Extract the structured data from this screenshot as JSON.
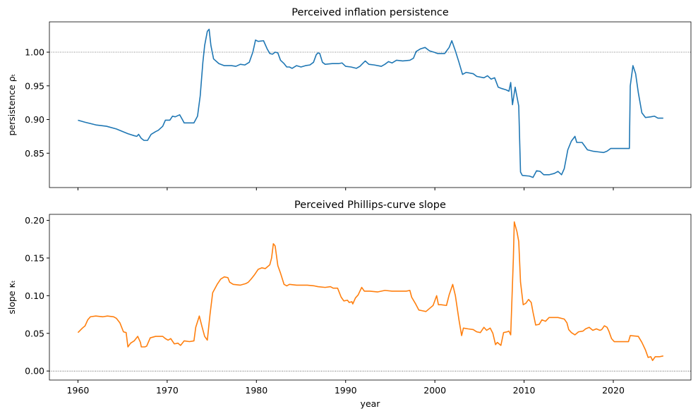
{
  "chart_data": [
    {
      "type": "line",
      "title": "Perceived inflation persistence",
      "ylabel": "persistence ρₜ",
      "xlim": [
        1956.8,
        2028.7
      ],
      "ylim": [
        0.799,
        1.045
      ],
      "xticks": [
        1960,
        1970,
        1980,
        1990,
        2000,
        2010,
        2020
      ],
      "show_xtick_labels": false,
      "yticks": [
        0.85,
        {
          "value": 0.9,
          "label": "0.90"
        },
        0.95,
        {
          "value": 1.0,
          "label": "1.00"
        }
      ],
      "hline": 1.0,
      "x": [
        1960.0,
        1960.8,
        1962.0,
        1963.2,
        1964.3,
        1965.6,
        1966.3,
        1966.6,
        1966.8,
        1967.1,
        1967.4,
        1967.8,
        1968.2,
        1968.7,
        1969.0,
        1969.5,
        1969.8,
        1970.3,
        1970.6,
        1970.9,
        1971.4,
        1971.7,
        1971.9,
        1972.6,
        1973.0,
        1973.4,
        1973.7,
        1974.0,
        1974.2,
        1974.5,
        1974.7,
        1974.9,
        1975.2,
        1975.8,
        1976.4,
        1977.2,
        1977.7,
        1978.2,
        1978.7,
        1979.2,
        1979.6,
        1979.9,
        1980.2,
        1980.8,
        1981.2,
        1981.5,
        1981.8,
        1982.1,
        1982.4,
        1982.7,
        1983.1,
        1983.4,
        1983.7,
        1984.0,
        1984.5,
        1985.0,
        1985.5,
        1986.0,
        1986.4,
        1986.7,
        1986.9,
        1987.1,
        1987.4,
        1987.7,
        1988.5,
        1989.2,
        1989.6,
        1990.0,
        1990.6,
        1991.2,
        1991.6,
        1991.9,
        1992.2,
        1992.6,
        1993.2,
        1994.0,
        1994.4,
        1994.8,
        1995.2,
        1995.7,
        1996.4,
        1997.2,
        1997.6,
        1997.9,
        1998.4,
        1998.9,
        1999.4,
        1999.9,
        2000.3,
        2001.1,
        2001.6,
        2001.9,
        2002.3,
        2002.7,
        2003.1,
        2003.5,
        2004.3,
        2004.7,
        2005.5,
        2005.9,
        2006.3,
        2006.7,
        2007.1,
        2007.5,
        2008.0,
        2008.3,
        2008.5,
        2008.7,
        2009.0,
        2009.4,
        2009.6,
        2009.8,
        2010.6,
        2011.0,
        2011.4,
        2011.8,
        2012.2,
        2012.8,
        2013.4,
        2013.8,
        2014.2,
        2014.5,
        2014.9,
        2015.3,
        2015.7,
        2015.9,
        2016.5,
        2017.1,
        2017.7,
        2018.3,
        2018.9,
        2019.3,
        2019.7,
        2020.9,
        2021.8,
        2021.9,
        2022.2,
        2022.5,
        2022.8,
        2023.2,
        2023.6,
        2024.2,
        2024.6,
        2025.0,
        2025.6
      ],
      "series": [
        {
          "color": "#1f77b4",
          "values": [
            0.899,
            0.896,
            0.892,
            0.89,
            0.886,
            0.879,
            0.876,
            0.875,
            0.878,
            0.872,
            0.869,
            0.869,
            0.878,
            0.882,
            0.884,
            0.89,
            0.899,
            0.899,
            0.905,
            0.904,
            0.907,
            0.9,
            0.895,
            0.895,
            0.895,
            0.905,
            0.935,
            0.985,
            1.01,
            1.031,
            1.034,
            1.01,
            0.99,
            0.983,
            0.98,
            0.98,
            0.979,
            0.982,
            0.981,
            0.985,
            1.0,
            1.018,
            1.016,
            1.017,
            1.005,
            0.998,
            0.997,
            1.0,
            0.999,
            0.988,
            0.983,
            0.978,
            0.978,
            0.976,
            0.98,
            0.978,
            0.98,
            0.981,
            0.985,
            0.996,
            0.999,
            0.998,
            0.985,
            0.982,
            0.983,
            0.983,
            0.984,
            0.979,
            0.978,
            0.976,
            0.979,
            0.983,
            0.987,
            0.982,
            0.981,
            0.979,
            0.982,
            0.986,
            0.984,
            0.988,
            0.987,
            0.988,
            0.991,
            1.001,
            1.005,
            1.007,
            1.002,
            1.0,
            0.998,
            0.998,
            1.007,
            1.017,
            1.002,
            0.985,
            0.967,
            0.97,
            0.968,
            0.964,
            0.962,
            0.965,
            0.96,
            0.962,
            0.948,
            0.946,
            0.944,
            0.942,
            0.955,
            0.922,
            0.948,
            0.92,
            0.822,
            0.817,
            0.816,
            0.814,
            0.824,
            0.823,
            0.818,
            0.818,
            0.82,
            0.823,
            0.818,
            0.827,
            0.855,
            0.868,
            0.875,
            0.866,
            0.866,
            0.855,
            0.853,
            0.852,
            0.851,
            0.853,
            0.857,
            0.857,
            0.857,
            0.95,
            0.98,
            0.968,
            0.94,
            0.91,
            0.903,
            0.904,
            0.905,
            0.902,
            0.902
          ]
        }
      ]
    },
    {
      "type": "line",
      "title": "Perceived Phillips-curve slope",
      "ylabel": "slope κₜ",
      "xlabel": "year",
      "xlim": [
        1956.8,
        2028.7
      ],
      "ylim": [
        -0.012,
        0.208
      ],
      "xticks": [
        1960,
        1970,
        1980,
        1990,
        2000,
        2010,
        2020
      ],
      "show_xtick_labels": true,
      "yticks": [
        {
          "value": 0.0,
          "label": "0.00"
        },
        0.05,
        {
          "value": 0.1,
          "label": "0.10"
        },
        0.15,
        {
          "value": 0.2,
          "label": "0.20"
        }
      ],
      "hline": 0.0,
      "x": [
        1960.0,
        1960.5,
        1960.8,
        1961.1,
        1961.4,
        1962.0,
        1962.8,
        1963.3,
        1964.0,
        1964.3,
        1964.7,
        1965.1,
        1965.4,
        1965.6,
        1965.9,
        1966.3,
        1966.7,
        1967.0,
        1967.1,
        1967.5,
        1967.7,
        1968.1,
        1968.7,
        1969.5,
        1969.8,
        1970.1,
        1970.4,
        1970.8,
        1971.2,
        1971.5,
        1971.9,
        1972.5,
        1973.0,
        1973.2,
        1973.6,
        1973.9,
        1974.2,
        1974.5,
        1974.8,
        1975.1,
        1975.6,
        1976.0,
        1976.4,
        1976.8,
        1977.0,
        1977.4,
        1978.2,
        1978.8,
        1979.1,
        1979.4,
        1979.8,
        1980.2,
        1980.6,
        1981.0,
        1981.5,
        1981.7,
        1981.9,
        1982.1,
        1982.4,
        1982.7,
        1983.1,
        1983.4,
        1983.7,
        1984.5,
        1985.7,
        1986.5,
        1986.9,
        1987.7,
        1988.3,
        1988.6,
        1989.1,
        1989.5,
        1989.8,
        1990.2,
        1990.4,
        1990.7,
        1990.8,
        1991.1,
        1991.4,
        1991.8,
        1992.1,
        1992.7,
        1993.6,
        1994.4,
        1995.2,
        1996.0,
        1996.8,
        1997.2,
        1997.4,
        1997.8,
        1998.2,
        1998.6,
        1999.0,
        1999.5,
        1999.8,
        2000.2,
        2000.4,
        2000.7,
        2001.3,
        2001.6,
        2002.0,
        2002.3,
        2002.7,
        2003.0,
        2003.2,
        2003.7,
        2004.3,
        2004.7,
        2005.1,
        2005.5,
        2005.8,
        2006.2,
        2006.5,
        2006.8,
        2007.0,
        2007.4,
        2007.7,
        2008.1,
        2008.3,
        2008.5,
        2008.8,
        2008.9,
        2009.2,
        2009.4,
        2009.6,
        2009.9,
        2010.2,
        2010.5,
        2010.8,
        2011.0,
        2011.3,
        2011.7,
        2012.0,
        2012.4,
        2012.8,
        2013.8,
        2014.5,
        2014.8,
        2015.0,
        2015.3,
        2015.7,
        2016.1,
        2016.6,
        2016.9,
        2017.3,
        2017.7,
        2018.1,
        2018.5,
        2018.7,
        2019.0,
        2019.3,
        2019.5,
        2019.8,
        2020.1,
        2020.9,
        2021.7,
        2021.9,
        2022.8,
        2023.2,
        2023.6,
        2023.9,
        2024.2,
        2024.4,
        2024.7,
        2025.2,
        2025.6
      ],
      "series": [
        {
          "color": "#ff7f0e",
          "values": [
            0.051,
            0.057,
            0.06,
            0.068,
            0.072,
            0.073,
            0.072,
            0.073,
            0.072,
            0.07,
            0.064,
            0.052,
            0.051,
            0.032,
            0.037,
            0.04,
            0.046,
            0.038,
            0.032,
            0.032,
            0.033,
            0.044,
            0.046,
            0.046,
            0.043,
            0.041,
            0.043,
            0.036,
            0.037,
            0.034,
            0.04,
            0.039,
            0.04,
            0.058,
            0.073,
            0.059,
            0.046,
            0.041,
            0.075,
            0.104,
            0.115,
            0.122,
            0.125,
            0.124,
            0.118,
            0.115,
            0.114,
            0.116,
            0.118,
            0.122,
            0.128,
            0.135,
            0.137,
            0.136,
            0.141,
            0.15,
            0.169,
            0.166,
            0.14,
            0.13,
            0.115,
            0.113,
            0.115,
            0.114,
            0.114,
            0.113,
            0.112,
            0.111,
            0.112,
            0.11,
            0.11,
            0.098,
            0.093,
            0.094,
            0.091,
            0.092,
            0.089,
            0.097,
            0.101,
            0.111,
            0.106,
            0.106,
            0.105,
            0.107,
            0.106,
            0.106,
            0.106,
            0.107,
            0.098,
            0.09,
            0.081,
            0.08,
            0.079,
            0.084,
            0.087,
            0.1,
            0.088,
            0.088,
            0.087,
            0.101,
            0.115,
            0.1,
            0.068,
            0.047,
            0.057,
            0.056,
            0.055,
            0.052,
            0.051,
            0.058,
            0.054,
            0.057,
            0.05,
            0.035,
            0.038,
            0.034,
            0.051,
            0.052,
            0.053,
            0.048,
            0.15,
            0.198,
            0.185,
            0.172,
            0.118,
            0.088,
            0.09,
            0.095,
            0.091,
            0.078,
            0.061,
            0.062,
            0.068,
            0.066,
            0.071,
            0.071,
            0.069,
            0.064,
            0.055,
            0.051,
            0.048,
            0.052,
            0.053,
            0.056,
            0.058,
            0.054,
            0.056,
            0.054,
            0.055,
            0.06,
            0.058,
            0.053,
            0.043,
            0.039,
            0.039,
            0.039,
            0.047,
            0.046,
            0.038,
            0.028,
            0.018,
            0.019,
            0.014,
            0.019,
            0.019,
            0.02
          ]
        }
      ]
    }
  ]
}
